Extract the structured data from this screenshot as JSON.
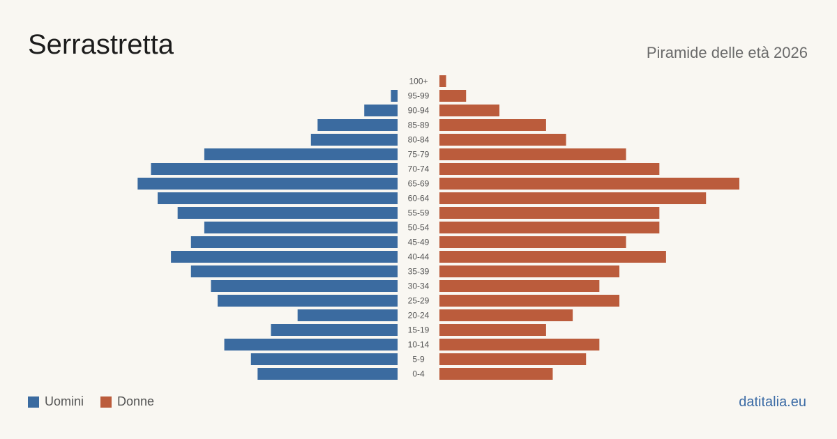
{
  "header": {
    "title": "Serrastretta",
    "subtitle": "Piramide delle età 2026"
  },
  "legend": {
    "men_label": "Uomini",
    "women_label": "Donne"
  },
  "footer": {
    "brand": "datitalia.eu"
  },
  "colors": {
    "men": "#3b6ba0",
    "women": "#bb5c3c",
    "age_label": "#555555"
  },
  "chart_data": {
    "type": "bar",
    "orientation": "horizontal-pyramid",
    "categories": [
      "100+",
      "95-99",
      "90-94",
      "85-89",
      "80-84",
      "75-79",
      "70-74",
      "65-69",
      "60-64",
      "55-59",
      "50-54",
      "45-49",
      "40-44",
      "35-39",
      "30-34",
      "25-29",
      "20-24",
      "15-19",
      "10-14",
      "5-9",
      "0-4"
    ],
    "series": [
      {
        "name": "Uomini",
        "values": [
          0,
          1,
          5,
          12,
          13,
          29,
          37,
          39,
          36,
          33,
          29,
          31,
          34,
          31,
          28,
          27,
          15,
          19,
          26,
          22,
          21
        ]
      },
      {
        "name": "Donne",
        "values": [
          1,
          4,
          9,
          16,
          19,
          28,
          33,
          45,
          40,
          33,
          33,
          28,
          34,
          27,
          24,
          27,
          20,
          16,
          24,
          22,
          17
        ]
      }
    ],
    "xlim": [
      0,
      45
    ],
    "grid": false,
    "legend_position": "bottom-left"
  }
}
